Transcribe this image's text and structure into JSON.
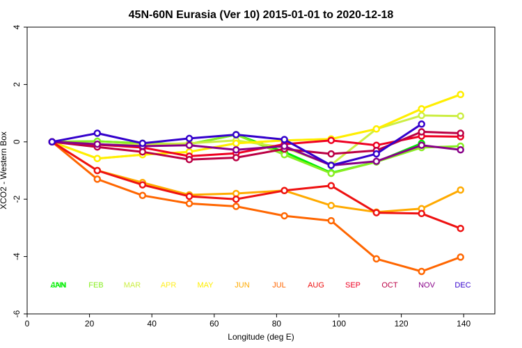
{
  "chart_data": {
    "type": "line",
    "title": "45N-60N Eurasia (Ver 10)   2015-01-01 to 2020-12-18",
    "xlabel": "Longitude (deg E)",
    "ylabel": "XCO2 - Western Box",
    "xlim": [
      0,
      150
    ],
    "ylim": [
      -6,
      4
    ],
    "xticks": [
      0,
      20,
      40,
      60,
      80,
      100,
      120,
      140
    ],
    "yticks": [
      -6,
      -4,
      -2,
      0,
      2,
      4
    ],
    "x": [
      8,
      22.5,
      37,
      52,
      67,
      82.5,
      97.5,
      112,
      126.5,
      139
    ],
    "grid": false,
    "legend_position": "bottom",
    "series": [
      {
        "name": "ANN",
        "color": "#00ee00",
        "values": [
          0,
          0.02,
          -0.05,
          -0.08,
          0.25,
          -0.35,
          -1.08,
          -0.7,
          -0.05,
          null
        ]
      },
      {
        "name": "FEB",
        "color": "#88ee22",
        "values": [
          0,
          0.02,
          -0.05,
          -0.08,
          0.25,
          -0.45,
          -1.1,
          -0.7,
          -0.2,
          -0.15
        ]
      },
      {
        "name": "MAR",
        "color": "#ccee44",
        "values": [
          0,
          -0.1,
          -0.1,
          -0.05,
          0.05,
          -0.2,
          -0.8,
          0.45,
          0.92,
          0.9
        ]
      },
      {
        "name": "APR",
        "color": "#ffee22",
        "values": [
          0,
          -0.58,
          -0.45,
          -0.35,
          -0.05,
          0.05,
          0.1,
          0.45,
          1.15,
          1.65
        ]
      },
      {
        "name": "MAY",
        "color": "#ffee00",
        "values": [
          0,
          -0.58,
          -0.45,
          -0.35,
          -0.05,
          0.05,
          0.1,
          0.45,
          1.15,
          1.65
        ]
      },
      {
        "name": "JUN",
        "color": "#ffaa00",
        "values": [
          0,
          -1.0,
          -1.42,
          -1.85,
          -1.8,
          -1.7,
          -2.22,
          -2.45,
          -2.33,
          -1.68
        ]
      },
      {
        "name": "JUL",
        "color": "#ff6600",
        "values": [
          0,
          -1.3,
          -1.87,
          -2.15,
          -2.25,
          -2.58,
          -2.75,
          -4.08,
          -4.52,
          -4.02
        ]
      },
      {
        "name": "AUG",
        "color": "#ee1111",
        "values": [
          0,
          -1.0,
          -1.5,
          -1.9,
          -2.0,
          -1.7,
          -1.53,
          -2.47,
          -2.5,
          -3.02
        ]
      },
      {
        "name": "SEP",
        "color": "#ee0022",
        "values": [
          0,
          -0.1,
          -0.2,
          -0.5,
          -0.4,
          -0.08,
          0.05,
          -0.12,
          0.2,
          0.18
        ]
      },
      {
        "name": "OCT",
        "color": "#bb0044",
        "values": [
          0,
          -0.18,
          -0.35,
          -0.62,
          -0.55,
          -0.25,
          -0.42,
          -0.3,
          0.35,
          0.3
        ]
      },
      {
        "name": "NOV",
        "color": "#880088",
        "values": [
          0,
          -0.08,
          -0.15,
          -0.12,
          -0.28,
          -0.15,
          -0.82,
          -0.68,
          -0.12,
          -0.28
        ]
      },
      {
        "name": "DEC",
        "color": "#3300cc",
        "values": [
          0,
          0.3,
          -0.05,
          0.12,
          0.25,
          0.08,
          -0.82,
          -0.42,
          0.62,
          null
        ]
      }
    ],
    "legend": [
      {
        "name": "ANN",
        "color": "#00ee00"
      },
      {
        "name": "FEB",
        "color": "#88ee22"
      },
      {
        "name": "MAR",
        "color": "#ccee44"
      },
      {
        "name": "APR",
        "color": "#ffee22"
      },
      {
        "name": "MAY",
        "color": "#ffee00"
      },
      {
        "name": "JUN",
        "color": "#ffaa00"
      },
      {
        "name": "JUL",
        "color": "#ff6600"
      },
      {
        "name": "AUG",
        "color": "#ee1111"
      },
      {
        "name": "SEP",
        "color": "#ee0022"
      },
      {
        "name": "OCT",
        "color": "#bb0044"
      },
      {
        "name": "NOV",
        "color": "#880088"
      },
      {
        "name": "DEC",
        "color": "#3300cc"
      }
    ],
    "legend_overlap": {
      "name": "JAN",
      "color": "#00ee00"
    }
  }
}
